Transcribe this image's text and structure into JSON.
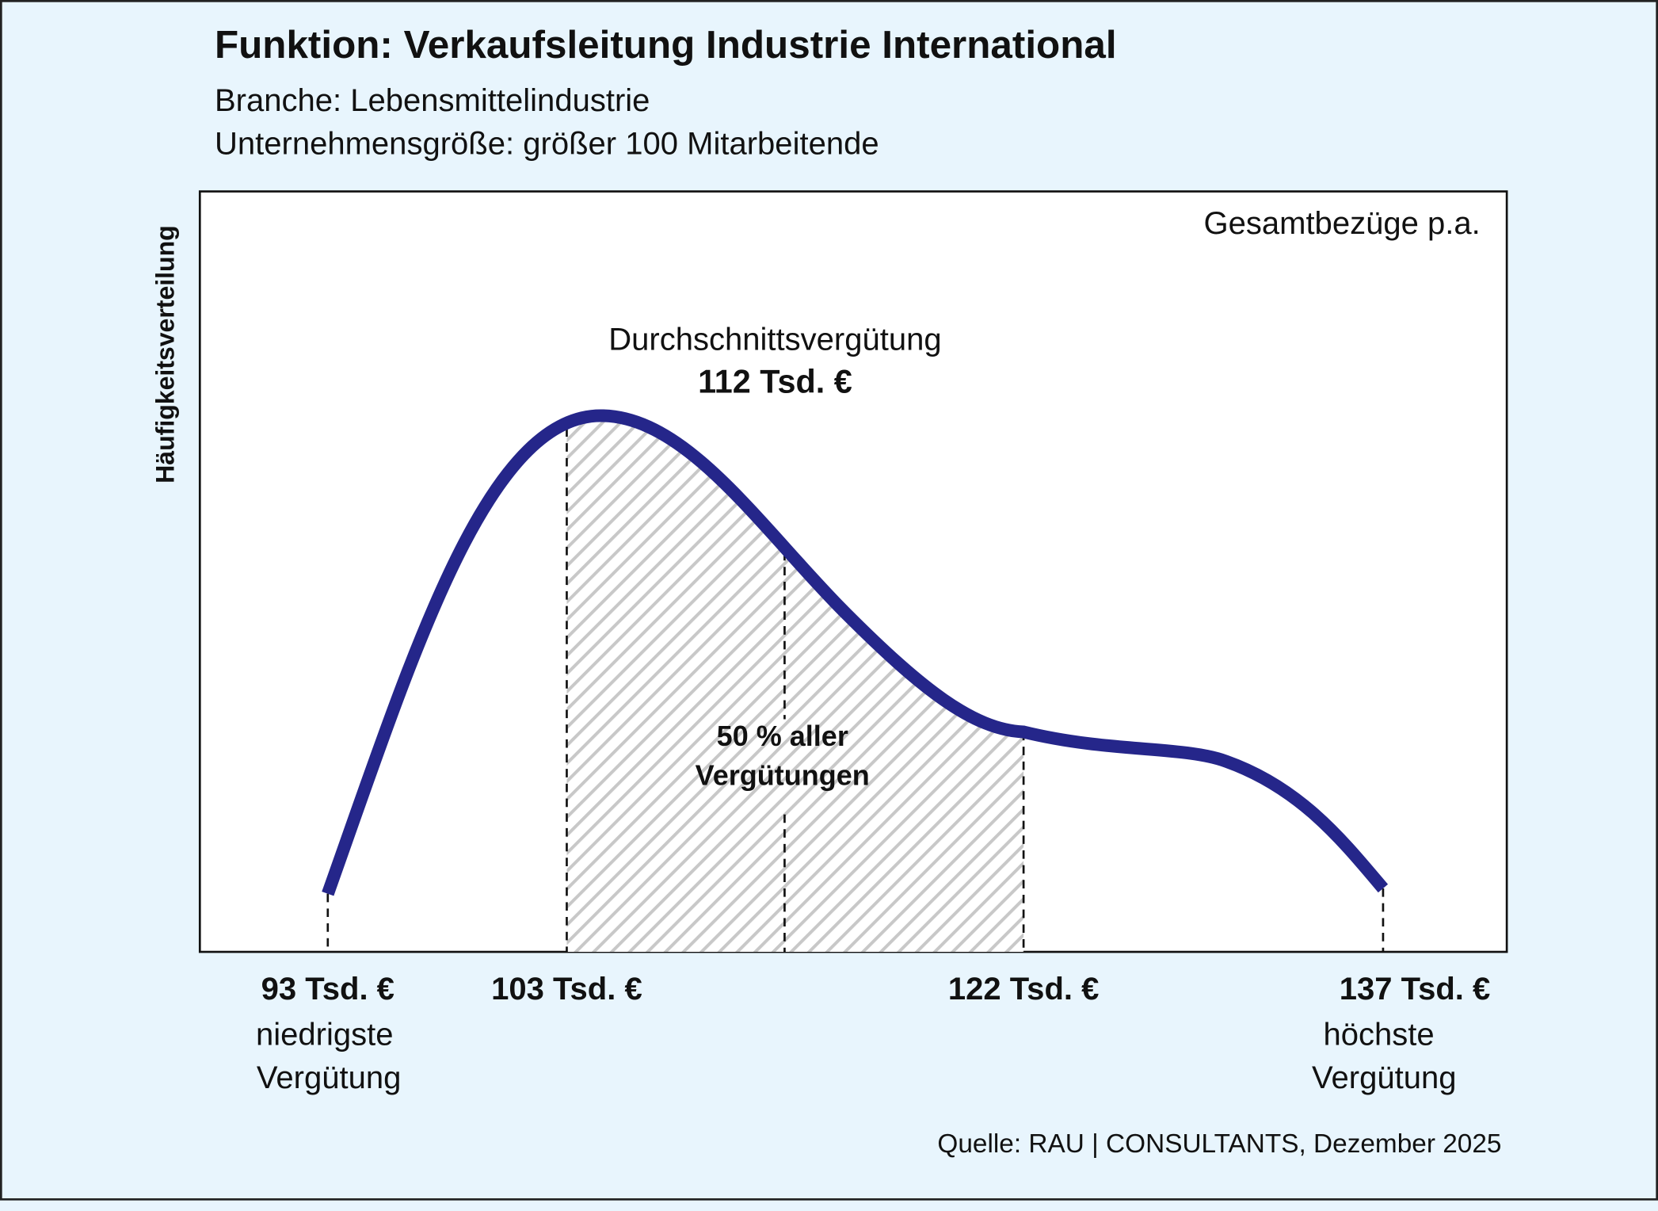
{
  "header": {
    "title": "Funktion: Verkaufsleitung Industrie International",
    "subtitle_lines": [
      "Branche: Lebensmittelindustrie",
      "Unternehmensgröße: größer 100 Mitarbeitende"
    ]
  },
  "diagram": {
    "y_axis_label": "Häufigkeitsverteilung",
    "corner_label": "Gesamtbezüge p.a.",
    "average": {
      "label": "Durchschnittsvergütung",
      "value": "112 Tsd. €"
    },
    "share": {
      "line1": "50 % aller",
      "line2": "Vergütungen"
    },
    "markers": [
      {
        "value": "93 Tsd. €",
        "lines": [
          "niedrigste",
          "Vergütung"
        ]
      },
      {
        "value": "103 Tsd. €"
      },
      {
        "value": "122 Tsd. €"
      },
      {
        "value": "137 Tsd. €",
        "lines": [
          "höchste",
          "Vergütung"
        ]
      }
    ]
  },
  "footer": {
    "source": "Quelle: RAU | CONSULTANTS, Dezember 2025"
  }
}
